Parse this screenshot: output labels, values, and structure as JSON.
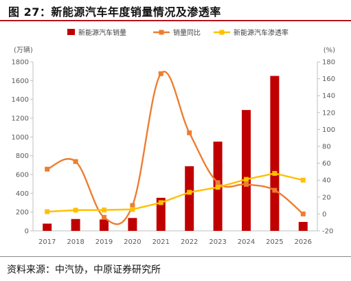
{
  "header": {
    "title": "图 27：新能源汽车年度销量情况及渗透率"
  },
  "footer": {
    "source": "资料来源：中汽协，中原证券研究所"
  },
  "chart_data": {
    "type": "bar",
    "categories": [
      "2017",
      "2018",
      "2019",
      "2020",
      "2021",
      "2022",
      "2023",
      "2024",
      "2025",
      "2026"
    ],
    "left_unit_label": "(万辆)",
    "right_unit_label": "(%)",
    "ylim_left": [
      0,
      1800
    ],
    "yticks_left": [
      0,
      200,
      400,
      600,
      800,
      1000,
      1200,
      1400,
      1600,
      1800
    ],
    "ylim_right": [
      -20,
      180
    ],
    "yticks_right": [
      -20,
      0,
      20,
      40,
      60,
      80,
      100,
      120,
      140,
      160,
      180
    ],
    "grid": false,
    "legend_position": "top",
    "series": [
      {
        "name": "新能源汽车销量",
        "type": "bar",
        "axis": "left",
        "color": "#c00000",
        "values": [
          77,
          126,
          121,
          137,
          352,
          688,
          950,
          1287,
          1650,
          95
        ]
      },
      {
        "name": "销量同比",
        "type": "line",
        "axis": "right",
        "color": "#ed7d31",
        "smooth": true,
        "values": [
          53,
          62,
          -4,
          10,
          166,
          96,
          37,
          35,
          28,
          0
        ]
      },
      {
        "name": "新能源汽车渗透率",
        "type": "line",
        "axis": "right",
        "color": "#ffc000",
        "values": [
          2.7,
          4.5,
          4.7,
          5.4,
          13.4,
          25.6,
          31.6,
          40.9,
          48,
          40
        ]
      }
    ]
  }
}
